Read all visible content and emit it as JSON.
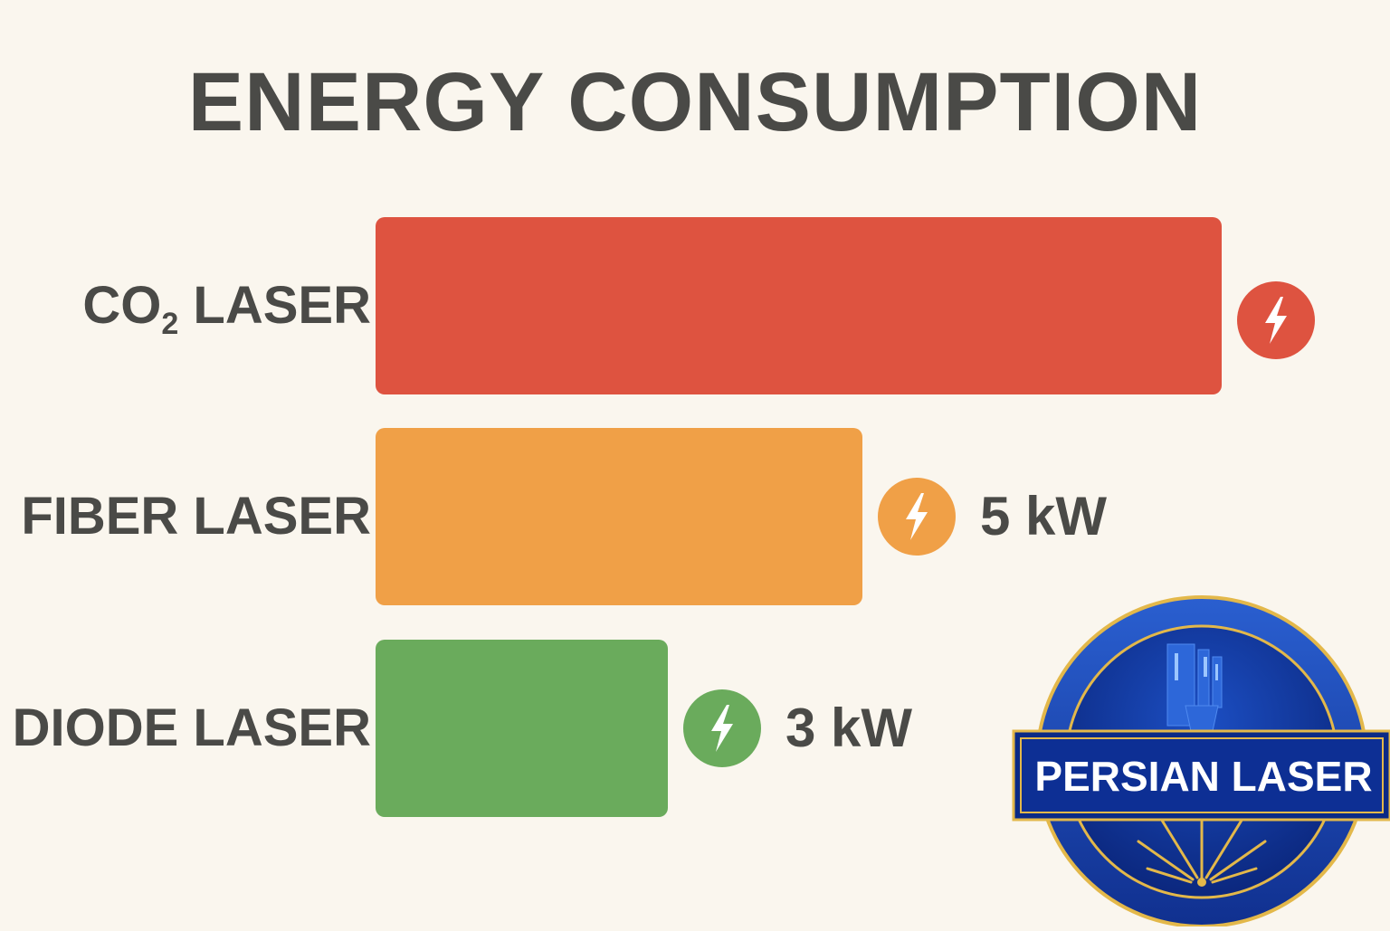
{
  "chart_data": {
    "type": "bar",
    "orientation": "horizontal",
    "title": "ENERGY CONSUMPTION",
    "categories": [
      {
        "name": "CO",
        "subscript": "2",
        "suffix": " LASER"
      },
      {
        "name": "FIBER LASER",
        "subscript": "",
        "suffix": ""
      },
      {
        "name": "DIODE LASER",
        "subscript": "",
        "suffix": ""
      }
    ],
    "values": [
      8.7,
      5,
      3
    ],
    "value_labels": [
      "",
      "5 kW",
      "3 kW"
    ],
    "unit": "kW",
    "colors": [
      "#de5340",
      "#f0a047",
      "#6aab5c"
    ],
    "grid": false,
    "legend": "none"
  },
  "icons": {
    "bar_marker": "lightning-bolt-icon"
  },
  "logo": {
    "text": "PERSIAN LASER",
    "colors": {
      "outer_ring": "#1f46b0",
      "inner_field": "#0f2e8e",
      "banner": "#0b2a88",
      "banner_text": "#ffffff",
      "gold": "#e0b43a"
    }
  }
}
